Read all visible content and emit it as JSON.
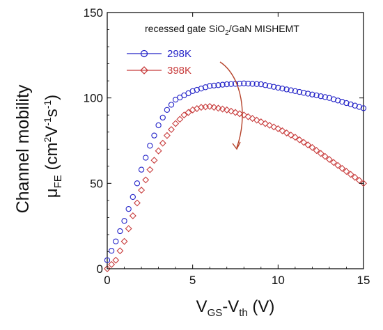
{
  "chart_data": {
    "type": "scatter",
    "title": {
      "base": "recessed gate SiO",
      "sub": "2",
      "rest": "/GaN MISHEMT"
    },
    "xlabel": {
      "base": "V",
      "sub1": "GS",
      "mid": "-V",
      "sub2": "th",
      "rest": " (V)"
    },
    "ylabel": {
      "line1": "Channel mobility",
      "mu": "μ",
      "mu_sub": "FE",
      "unit_open": " (cm",
      "sup1": "2",
      "v": "V",
      "sup2": "-1",
      "s": "s",
      "sup3": "-1",
      "unit_close": ")"
    },
    "xlim": [
      0,
      15
    ],
    "ylim": [
      0,
      150
    ],
    "xticks": [
      0,
      5,
      10,
      15
    ],
    "yticks": [
      0,
      50,
      100,
      150
    ],
    "xtick_labels": [
      "0",
      "5",
      "10",
      "15"
    ],
    "ytick_labels": [
      "0",
      "50",
      "100",
      "150"
    ],
    "legend_position": "top-left",
    "grid": false,
    "annotation": "curved arrow from 298K curve toward 398K curve",
    "series": [
      {
        "name": "298K",
        "marker": "circle",
        "color": "#2323c8",
        "points": [
          [
            0.0,
            5
          ],
          [
            0.5,
            16
          ],
          [
            1.0,
            28
          ],
          [
            1.5,
            42
          ],
          [
            2.0,
            58
          ],
          [
            2.5,
            72
          ],
          [
            3.0,
            84
          ],
          [
            3.5,
            93
          ],
          [
            4.0,
            99
          ],
          [
            5.0,
            104
          ],
          [
            6.0,
            107
          ],
          [
            7.0,
            108
          ],
          [
            8.0,
            108.5
          ],
          [
            9.0,
            108
          ],
          [
            10.0,
            106
          ],
          [
            11.0,
            104
          ],
          [
            12.0,
            102
          ],
          [
            13.0,
            100
          ],
          [
            14.0,
            97
          ],
          [
            15.0,
            94
          ]
        ]
      },
      {
        "name": "398K",
        "marker": "diamond",
        "color": "#c83c3c",
        "points": [
          [
            0.0,
            0
          ],
          [
            0.5,
            5
          ],
          [
            1.0,
            16
          ],
          [
            1.5,
            31
          ],
          [
            2.0,
            46
          ],
          [
            2.5,
            58
          ],
          [
            3.0,
            69
          ],
          [
            3.5,
            78
          ],
          [
            4.0,
            85
          ],
          [
            4.5,
            90
          ],
          [
            5.0,
            93
          ],
          [
            5.5,
            94.5
          ],
          [
            6.0,
            95
          ],
          [
            7.0,
            93
          ],
          [
            8.0,
            90
          ],
          [
            9.0,
            86
          ],
          [
            10.0,
            82
          ],
          [
            11.0,
            77
          ],
          [
            12.0,
            71
          ],
          [
            13.0,
            64
          ],
          [
            14.0,
            57
          ],
          [
            15.0,
            50
          ]
        ]
      }
    ]
  }
}
